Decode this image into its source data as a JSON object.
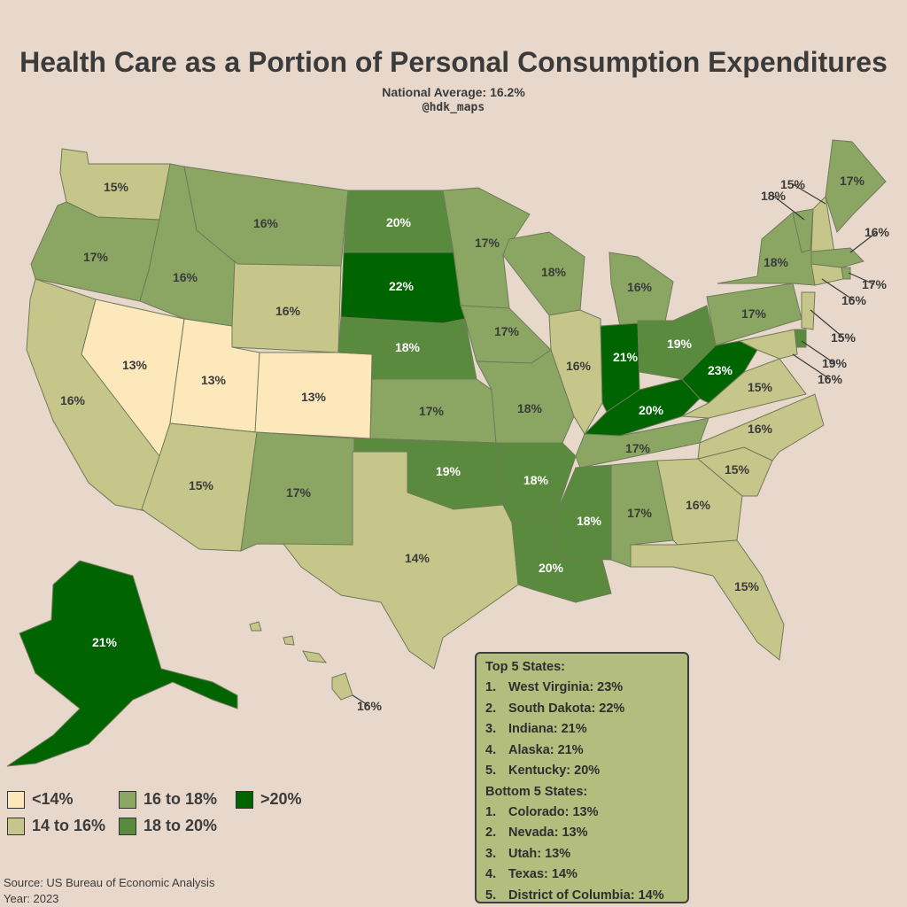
{
  "title": "Health Care as a Portion of Personal Consumption Expenditures",
  "subtitle": "National Average: 16.2%",
  "handle": "@hdk_maps",
  "colors": {
    "background": "#e8d8cb",
    "lt14": "#fde8bc",
    "14to16": "#c6c68a",
    "16to18": "#8aa662",
    "18to20": "#5a8a3e",
    "gt20": "#006400"
  },
  "legend": [
    {
      "label": "<14%",
      "color": "#fde8bc"
    },
    {
      "label": "14 to 16%",
      "color": "#c6c68a"
    },
    {
      "label": "16 to 18%",
      "color": "#8aa662"
    },
    {
      "label": "18 to 20%",
      "color": "#5a8a3e"
    },
    {
      "label": ">20%",
      "color": "#006400"
    }
  ],
  "states": [
    {
      "name": "Washington",
      "value": "15%",
      "class": "14to16"
    },
    {
      "name": "Oregon",
      "value": "17%",
      "class": "16to18"
    },
    {
      "name": "California",
      "value": "16%",
      "class": "14to16"
    },
    {
      "name": "Nevada",
      "value": "13%",
      "class": "lt14"
    },
    {
      "name": "Idaho",
      "value": "16%",
      "class": "16to18"
    },
    {
      "name": "Montana",
      "value": "16%",
      "class": "16to18"
    },
    {
      "name": "Wyoming",
      "value": "16%",
      "class": "14to16"
    },
    {
      "name": "Utah",
      "value": "13%",
      "class": "lt14"
    },
    {
      "name": "Colorado",
      "value": "13%",
      "class": "lt14"
    },
    {
      "name": "Arizona",
      "value": "15%",
      "class": "14to16"
    },
    {
      "name": "New Mexico",
      "value": "17%",
      "class": "16to18"
    },
    {
      "name": "North Dakota",
      "value": "20%",
      "class": "18to20"
    },
    {
      "name": "South Dakota",
      "value": "22%",
      "class": "gt20"
    },
    {
      "name": "Nebraska",
      "value": "18%",
      "class": "18to20"
    },
    {
      "name": "Kansas",
      "value": "17%",
      "class": "16to18"
    },
    {
      "name": "Oklahoma",
      "value": "19%",
      "class": "18to20"
    },
    {
      "name": "Texas",
      "value": "14%",
      "class": "14to16"
    },
    {
      "name": "Minnesota",
      "value": "17%",
      "class": "16to18"
    },
    {
      "name": "Iowa",
      "value": "17%",
      "class": "16to18"
    },
    {
      "name": "Missouri",
      "value": "18%",
      "class": "16to18"
    },
    {
      "name": "Arkansas",
      "value": "18%",
      "class": "18to20"
    },
    {
      "name": "Louisiana",
      "value": "20%",
      "class": "18to20"
    },
    {
      "name": "Wisconsin",
      "value": "18%",
      "class": "16to18"
    },
    {
      "name": "Illinois",
      "value": "16%",
      "class": "14to16"
    },
    {
      "name": "Michigan",
      "value": "16%",
      "class": "16to18"
    },
    {
      "name": "Indiana",
      "value": "21%",
      "class": "gt20"
    },
    {
      "name": "Ohio",
      "value": "19%",
      "class": "18to20"
    },
    {
      "name": "Kentucky",
      "value": "20%",
      "class": "gt20"
    },
    {
      "name": "Tennessee",
      "value": "17%",
      "class": "16to18"
    },
    {
      "name": "Mississippi",
      "value": "18%",
      "class": "18to20"
    },
    {
      "name": "Alabama",
      "value": "17%",
      "class": "16to18"
    },
    {
      "name": "Georgia",
      "value": "16%",
      "class": "14to16"
    },
    {
      "name": "Florida",
      "value": "15%",
      "class": "14to16"
    },
    {
      "name": "South Carolina",
      "value": "15%",
      "class": "14to16"
    },
    {
      "name": "North Carolina",
      "value": "16%",
      "class": "14to16"
    },
    {
      "name": "Virginia",
      "value": "15%",
      "class": "14to16"
    },
    {
      "name": "West Virginia",
      "value": "23%",
      "class": "gt20"
    },
    {
      "name": "Pennsylvania",
      "value": "17%",
      "class": "16to18"
    },
    {
      "name": "New York",
      "value": "18%",
      "class": "16to18"
    },
    {
      "name": "Vermont",
      "value": "18%",
      "class": "16to18"
    },
    {
      "name": "New Hampshire",
      "value": "15%",
      "class": "14to16"
    },
    {
      "name": "Maine",
      "value": "17%",
      "class": "16to18"
    },
    {
      "name": "Massachusetts",
      "value": "16%",
      "class": "16to18"
    },
    {
      "name": "Rhode Island",
      "value": "17%",
      "class": "16to18"
    },
    {
      "name": "Connecticut",
      "value": "16%",
      "class": "14to16"
    },
    {
      "name": "New Jersey",
      "value": "15%",
      "class": "14to16"
    },
    {
      "name": "Delaware",
      "value": "19%",
      "class": "18to20"
    },
    {
      "name": "Maryland",
      "value": "16%",
      "class": "14to16"
    },
    {
      "name": "Alaska",
      "value": "21%",
      "class": "gt20"
    },
    {
      "name": "Hawaii",
      "value": "16%",
      "class": "14to16"
    }
  ],
  "top5": {
    "heading": "Top 5 States:",
    "items": [
      {
        "rank": "1.",
        "text": "West Virginia: 23%"
      },
      {
        "rank": "2.",
        "text": "South Dakota: 22%"
      },
      {
        "rank": "3.",
        "text": "Indiana: 21%"
      },
      {
        "rank": "4.",
        "text": "Alaska: 21%"
      },
      {
        "rank": "5.",
        "text": "Kentucky: 20%"
      }
    ]
  },
  "bottom5": {
    "heading": "Bottom 5 States:",
    "items": [
      {
        "rank": "1.",
        "text": "Colorado: 13%"
      },
      {
        "rank": "2.",
        "text": "Nevada: 13%"
      },
      {
        "rank": "3.",
        "text": "Utah: 13%"
      },
      {
        "rank": "4.",
        "text": "Texas: 14%"
      },
      {
        "rank": "5.",
        "text": "District of Columbia: 14%"
      }
    ]
  },
  "source": "Source: US Bureau of Economic Analysis",
  "year": "Year: 2023"
}
